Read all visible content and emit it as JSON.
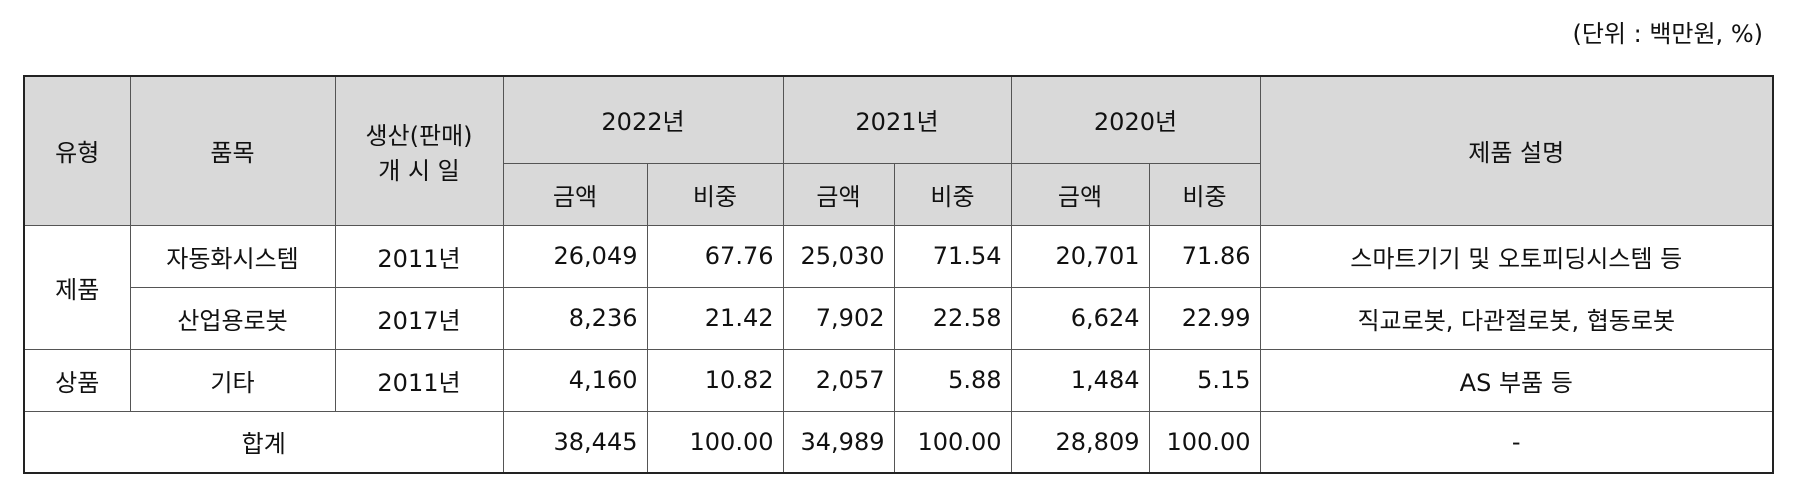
{
  "unit": "(단위 : 백만원, %)",
  "table": {
    "header": {
      "type": "유형",
      "item": "품목",
      "start": [
        "생산(판매)",
        "개 시 일"
      ],
      "years": [
        "2022년",
        "2021년",
        "2020년"
      ],
      "sub": [
        "금액",
        "비중",
        "금액",
        "비중",
        "금액",
        "비중"
      ],
      "desc": "제품 설명"
    },
    "rows": [
      {
        "type": "제품",
        "item": "자동화시스템",
        "start": "2011년",
        "cells": [
          "26,049",
          "67.76",
          "25,030",
          "71.54",
          "20,701",
          "71.86"
        ],
        "desc": "스마트기기 및 오토피딩시스템 등"
      },
      {
        "item": "산업용로봇",
        "start": "2017년",
        "cells": [
          "8,236",
          "21.42",
          "7,902",
          "22.58",
          "6,624",
          "22.99"
        ],
        "desc": "직교로봇, 다관절로봇, 협동로봇"
      },
      {
        "type": "상품",
        "item": "기타",
        "start": "2011년",
        "cells": [
          "4,160",
          "10.82",
          "2,057",
          "5.88",
          "1,484",
          "5.15"
        ],
        "desc": "AS 부품 등"
      }
    ],
    "total": {
      "label": "합계",
      "cells": [
        "38,445",
        "100.00",
        "34,989",
        "100.00",
        "28,809",
        "100.00"
      ],
      "desc": "-"
    }
  }
}
